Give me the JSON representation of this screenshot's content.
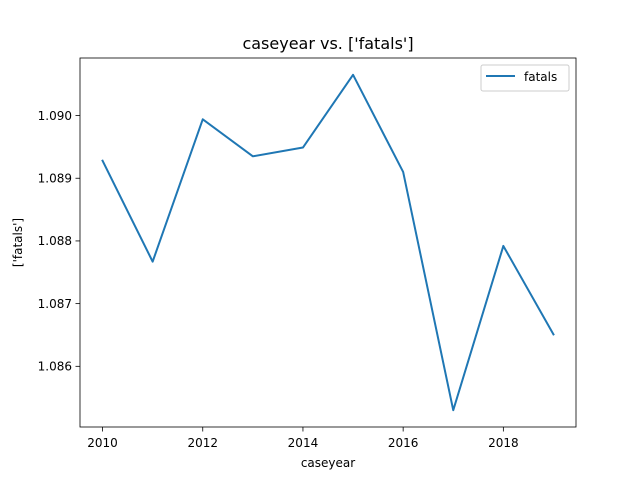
{
  "chart_data": {
    "type": "line",
    "title": "caseyear vs. ['fatals']",
    "xlabel": "caseyear",
    "ylabel": "['fatals']",
    "x": [
      2010,
      2011,
      2012,
      2013,
      2014,
      2015,
      2016,
      2017,
      2018,
      2019
    ],
    "series": [
      {
        "name": "fatals",
        "color": "#1f77b4",
        "values": [
          1.08928,
          1.08767,
          1.08994,
          1.08935,
          1.08949,
          1.09065,
          1.0891,
          1.0853,
          1.08792,
          1.08651
        ]
      }
    ],
    "xlim": [
      2009.55,
      2019.45
    ],
    "ylim": [
      1.085032,
      1.090918
    ],
    "xticks": [
      2010,
      2012,
      2014,
      2016,
      2018
    ],
    "xtick_labels": [
      "2010",
      "2012",
      "2014",
      "2016",
      "2018"
    ],
    "yticks": [
      1.086,
      1.087,
      1.088,
      1.089,
      1.09
    ],
    "ytick_labels": [
      "1.086",
      "1.087",
      "1.088",
      "1.089",
      "1.090"
    ],
    "grid": false,
    "legend_position": "top-right"
  }
}
